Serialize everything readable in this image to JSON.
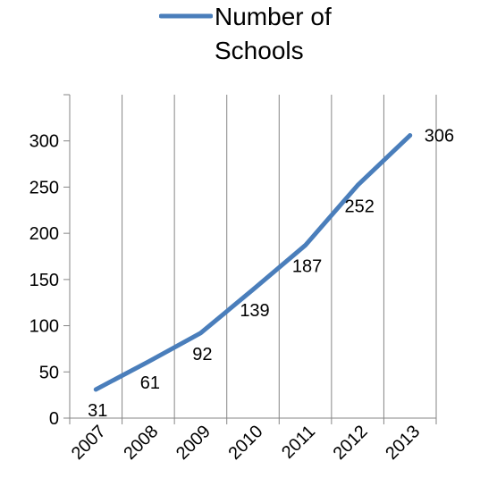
{
  "chart_data": {
    "type": "line",
    "title": "",
    "xlabel": "",
    "ylabel": "",
    "categories": [
      "2007",
      "2008",
      "2009",
      "2010",
      "2011",
      "2012",
      "2013"
    ],
    "series": [
      {
        "name": "Number of Schools",
        "name_lines": [
          "Number of",
          "Schools"
        ],
        "values": [
          31,
          61,
          92,
          139,
          187,
          252,
          306
        ],
        "color": "#4A7EBB"
      }
    ],
    "ylim": [
      0,
      350
    ],
    "yticks": [
      "0",
      "50",
      "100",
      "150",
      "200",
      "250",
      "300"
    ],
    "grid": "vertical",
    "legend": "top",
    "data_labels": [
      "31",
      "61",
      "92",
      "139",
      "187",
      "252",
      "306"
    ]
  }
}
